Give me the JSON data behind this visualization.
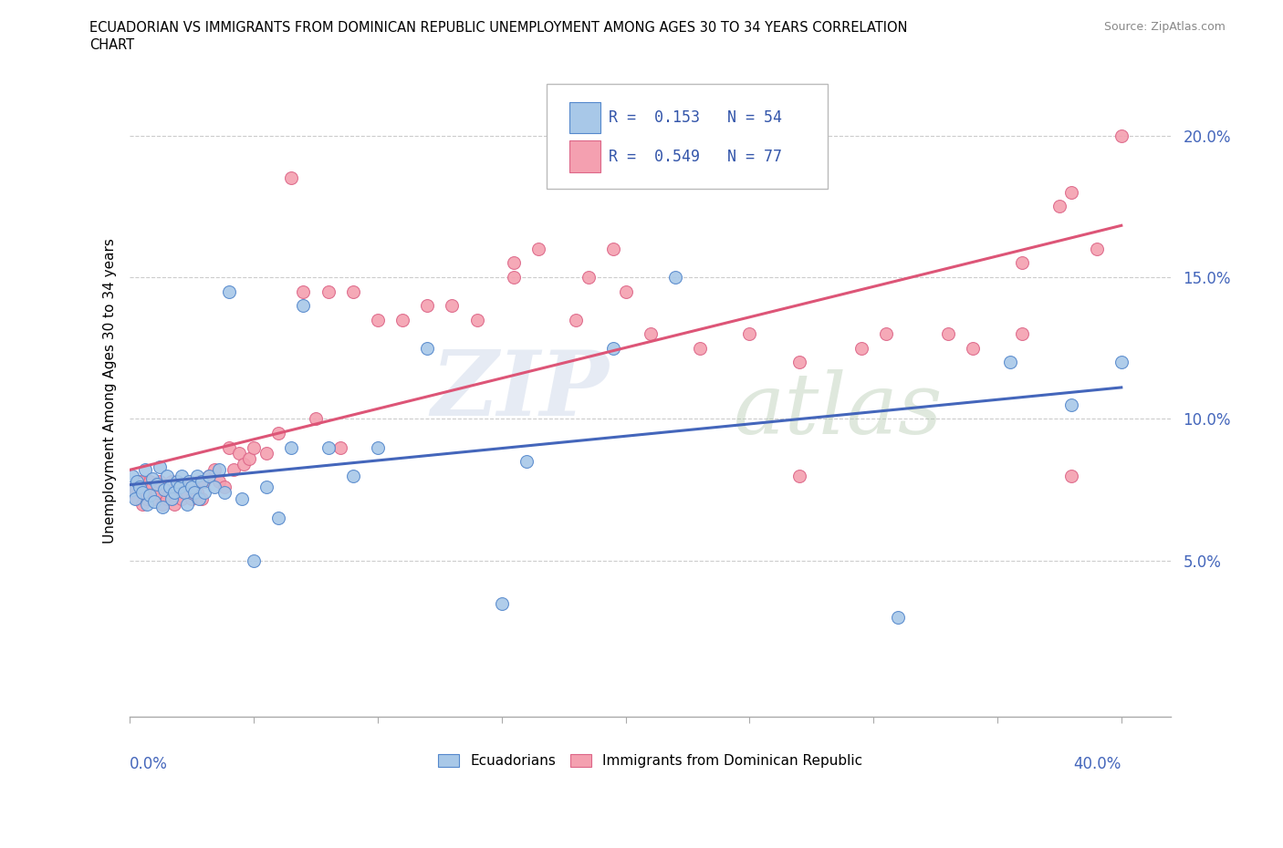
{
  "title_line1": "ECUADORIAN VS IMMIGRANTS FROM DOMINICAN REPUBLIC UNEMPLOYMENT AMONG AGES 30 TO 34 YEARS CORRELATION",
  "title_line2": "CHART",
  "source": "Source: ZipAtlas.com",
  "ylabel": "Unemployment Among Ages 30 to 34 years",
  "yticks": [
    0.05,
    0.1,
    0.15,
    0.2
  ],
  "ytick_labels": [
    "5.0%",
    "10.0%",
    "15.0%",
    "20.0%"
  ],
  "xlim": [
    0.0,
    0.42
  ],
  "ylim": [
    -0.005,
    0.225
  ],
  "legend_r_blue": "R =  0.153   N = 54",
  "legend_r_pink": "R =  0.549   N = 77",
  "blue_fill": "#a8c8e8",
  "pink_fill": "#f4a0b0",
  "blue_edge": "#5588cc",
  "pink_edge": "#dd6688",
  "blue_line": "#4466bb",
  "pink_line": "#dd5577",
  "ecuadorians_x": [
    0.001,
    0.001,
    0.002,
    0.003,
    0.004,
    0.005,
    0.006,
    0.007,
    0.008,
    0.009,
    0.01,
    0.011,
    0.012,
    0.013,
    0.014,
    0.015,
    0.016,
    0.017,
    0.018,
    0.019,
    0.02,
    0.021,
    0.022,
    0.023,
    0.024,
    0.025,
    0.026,
    0.027,
    0.028,
    0.029,
    0.03,
    0.032,
    0.034,
    0.036,
    0.038,
    0.04,
    0.045,
    0.05,
    0.055,
    0.06,
    0.065,
    0.07,
    0.08,
    0.09,
    0.1,
    0.12,
    0.15,
    0.16,
    0.195,
    0.22,
    0.31,
    0.355,
    0.38,
    0.4
  ],
  "ecuadorians_y": [
    0.075,
    0.08,
    0.072,
    0.078,
    0.076,
    0.074,
    0.082,
    0.07,
    0.073,
    0.079,
    0.071,
    0.077,
    0.083,
    0.069,
    0.075,
    0.08,
    0.076,
    0.072,
    0.074,
    0.078,
    0.076,
    0.08,
    0.074,
    0.07,
    0.078,
    0.076,
    0.074,
    0.08,
    0.072,
    0.078,
    0.074,
    0.08,
    0.076,
    0.082,
    0.074,
    0.145,
    0.072,
    0.05,
    0.076,
    0.065,
    0.09,
    0.14,
    0.09,
    0.08,
    0.09,
    0.125,
    0.035,
    0.085,
    0.125,
    0.15,
    0.03,
    0.12,
    0.105,
    0.12
  ],
  "dominican_x": [
    0.001,
    0.002,
    0.003,
    0.004,
    0.005,
    0.006,
    0.007,
    0.008,
    0.009,
    0.01,
    0.011,
    0.012,
    0.013,
    0.014,
    0.015,
    0.016,
    0.017,
    0.018,
    0.019,
    0.02,
    0.021,
    0.022,
    0.023,
    0.024,
    0.025,
    0.026,
    0.027,
    0.028,
    0.029,
    0.03,
    0.032,
    0.034,
    0.036,
    0.038,
    0.04,
    0.042,
    0.044,
    0.046,
    0.048,
    0.05,
    0.055,
    0.06,
    0.065,
    0.07,
    0.075,
    0.08,
    0.085,
    0.09,
    0.1,
    0.11,
    0.12,
    0.13,
    0.14,
    0.155,
    0.165,
    0.18,
    0.2,
    0.21,
    0.23,
    0.25,
    0.27,
    0.295,
    0.33,
    0.36,
    0.375,
    0.39,
    0.4,
    0.155,
    0.185,
    0.195,
    0.27,
    0.305,
    0.34,
    0.36,
    0.38,
    0.2,
    0.38
  ],
  "dominican_y": [
    0.074,
    0.076,
    0.072,
    0.078,
    0.07,
    0.074,
    0.072,
    0.078,
    0.076,
    0.072,
    0.074,
    0.078,
    0.07,
    0.076,
    0.072,
    0.074,
    0.078,
    0.07,
    0.076,
    0.074,
    0.072,
    0.076,
    0.074,
    0.078,
    0.072,
    0.076,
    0.074,
    0.078,
    0.072,
    0.078,
    0.08,
    0.082,
    0.078,
    0.076,
    0.09,
    0.082,
    0.088,
    0.084,
    0.086,
    0.09,
    0.088,
    0.095,
    0.185,
    0.145,
    0.1,
    0.145,
    0.09,
    0.145,
    0.135,
    0.135,
    0.14,
    0.14,
    0.135,
    0.15,
    0.16,
    0.135,
    0.145,
    0.13,
    0.125,
    0.13,
    0.08,
    0.125,
    0.13,
    0.155,
    0.175,
    0.16,
    0.2,
    0.155,
    0.15,
    0.16,
    0.12,
    0.13,
    0.125,
    0.13,
    0.08,
    0.2,
    0.18
  ]
}
